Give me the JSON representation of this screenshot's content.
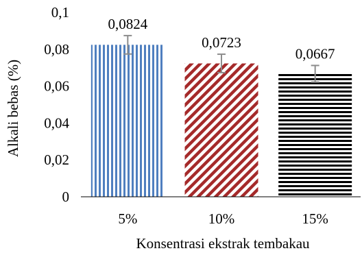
{
  "chart_data": {
    "type": "bar",
    "title": "",
    "xlabel": "Konsentrasi ekstrak tembakau",
    "ylabel": "Alkali bebas (%)",
    "categories": [
      "5%",
      "10%",
      "15%"
    ],
    "values": [
      0.0824,
      0.0723,
      0.0667
    ],
    "value_labels": [
      "0,0824",
      "0,0723",
      "0,0667"
    ],
    "error": [
      0.005,
      0.005,
      0.0045
    ],
    "ylim": [
      0,
      0.1
    ],
    "yticks": [
      0,
      0.02,
      0.04,
      0.06,
      0.08,
      0.1
    ],
    "ytick_labels": [
      "0",
      "0,02",
      "0,04",
      "0,06",
      "0,08",
      "0,1"
    ],
    "bar_patterns": [
      "vertical-stripes",
      "diagonal-stripes",
      "horizontal-stripes"
    ],
    "bar_colors": [
      "#4f7fbf",
      "#a52a2a",
      "#000000"
    ],
    "errorbar_color": "#8c8c8c",
    "grid": false,
    "legend": "none"
  }
}
